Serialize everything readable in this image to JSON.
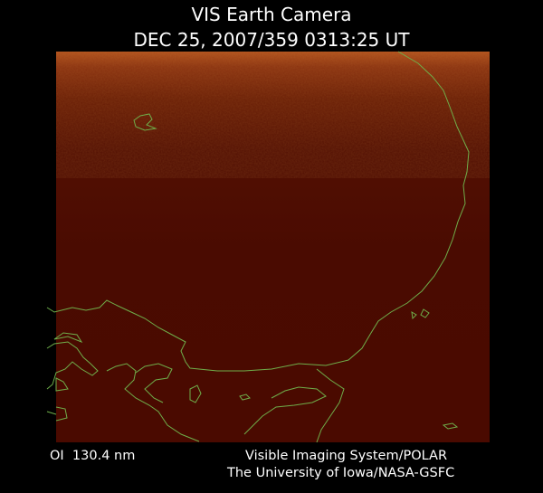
{
  "header": {
    "title": "VIS Earth Camera",
    "timestamp": "DEC 25, 2007/359 0313:25 UT"
  },
  "footer": {
    "wavelength": "OI  130.4 nm",
    "instrument": "Visible Imaging System/POLAR",
    "institution": "The University of Iowa/NASA-GSFC"
  }
}
